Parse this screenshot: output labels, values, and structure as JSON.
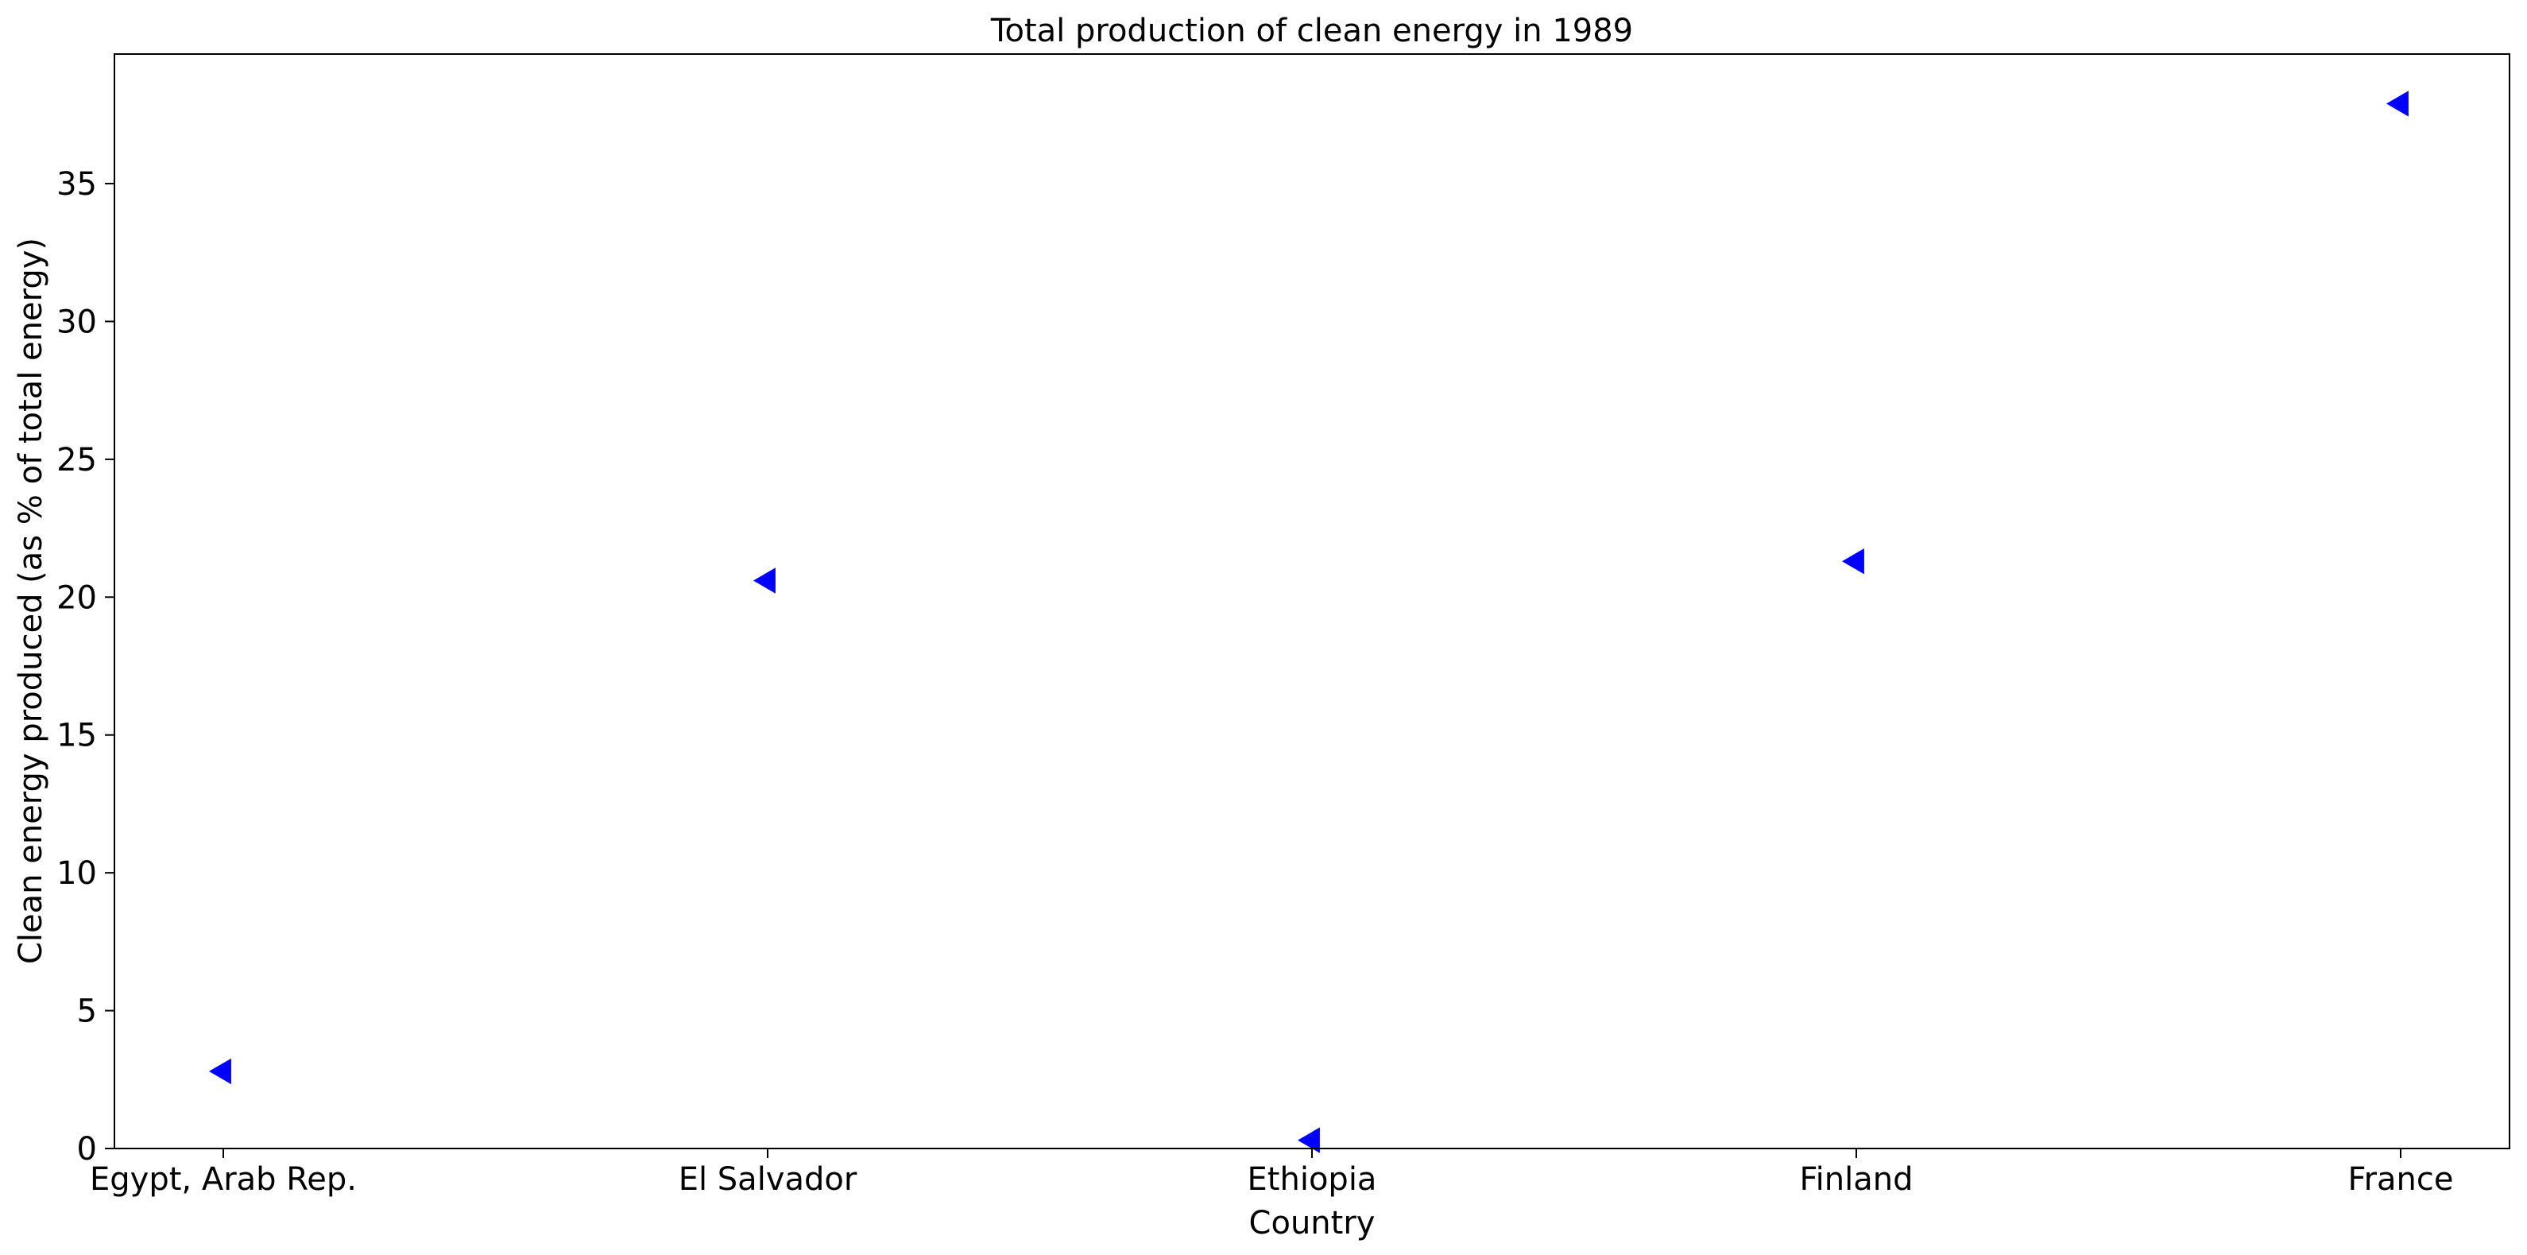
{
  "chart_data": {
    "type": "scatter",
    "title": "Total production of clean energy in 1989",
    "xlabel": "Country",
    "ylabel": "Clean energy produced (as % of total energy)",
    "categories": [
      "Egypt, Arab Rep.",
      "El Salvador",
      "Ethiopia",
      "Finland",
      "France"
    ],
    "series": [
      {
        "values": [
          2.8,
          20.6,
          0.3,
          21.3,
          37.9
        ],
        "color": "#0000ff",
        "marker": "triangle-left"
      }
    ],
    "ylim": [
      0,
      39.7
    ],
    "yticks": [
      0,
      5,
      10,
      15,
      20,
      25,
      30,
      35
    ],
    "grid": false,
    "legend": "none"
  }
}
